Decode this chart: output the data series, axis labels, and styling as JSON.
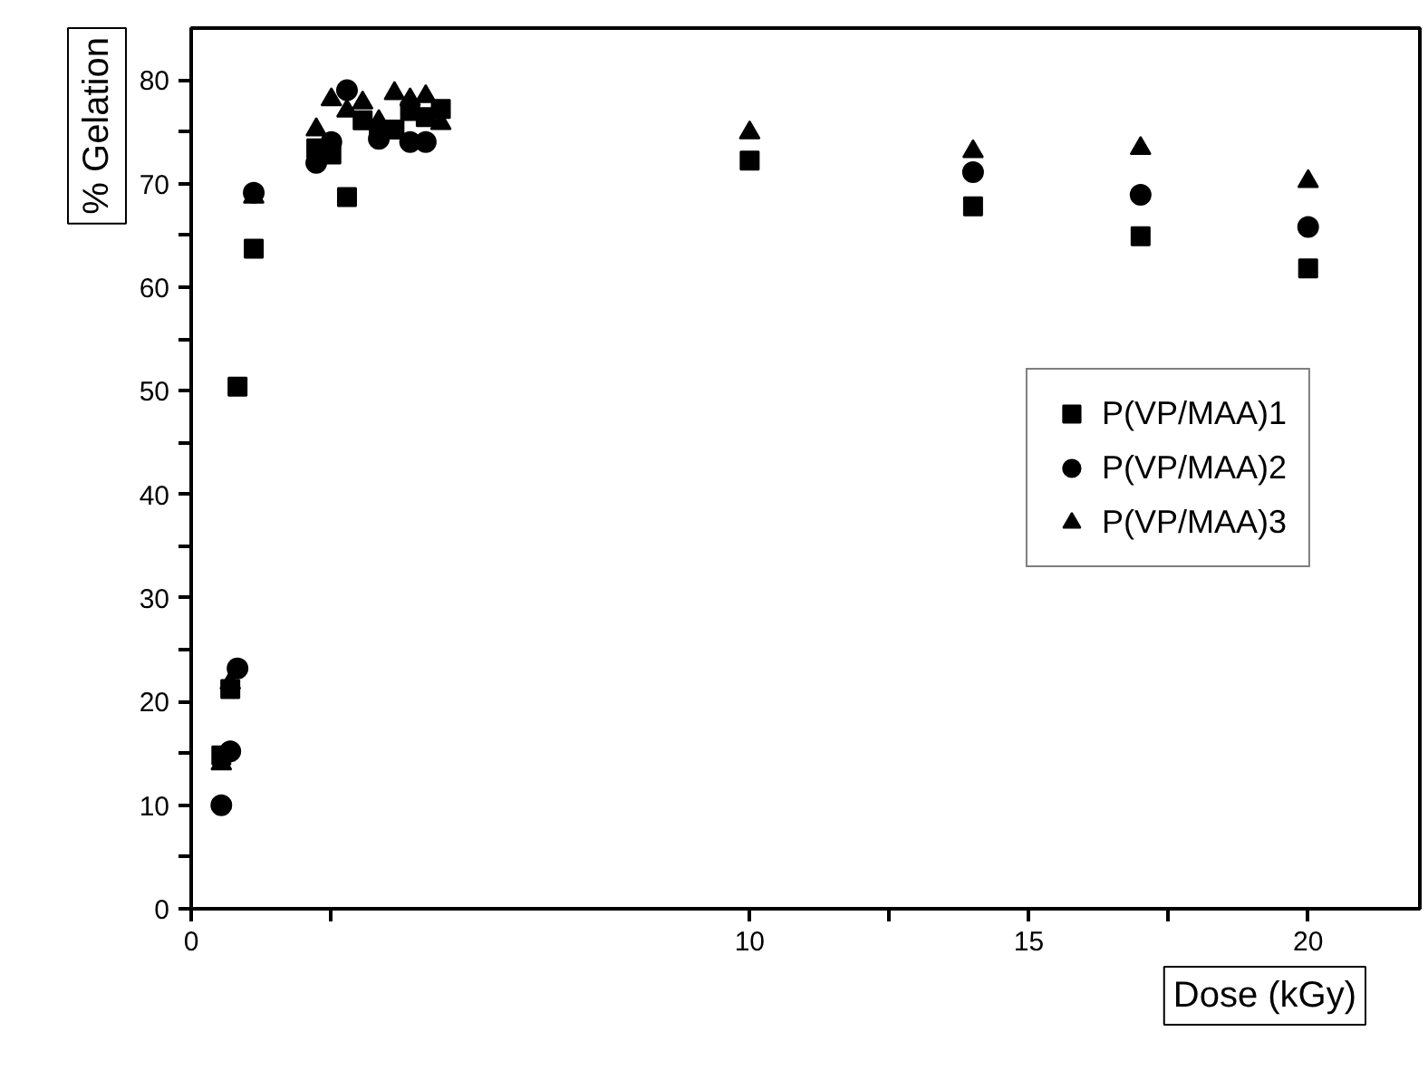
{
  "chart_data": {
    "type": "scatter",
    "xlabel": "Dose (kGy)",
    "ylabel": "% Gelation",
    "x": [
      0.54,
      0.7,
      0.83,
      1.12,
      2.24,
      2.51,
      2.79,
      3.07,
      3.36,
      3.64,
      3.92,
      4.2,
      4.47,
      10,
      14,
      17,
      20
    ],
    "series": [
      {
        "name": "P(VP/MAA)1",
        "color": "#000000",
        "marker": "square",
        "values": [
          14.8,
          21.2,
          50.4,
          63.7,
          73.4,
          72.8,
          68.7,
          76.1,
          75,
          75.2,
          77,
          76.4,
          77.2,
          72.2,
          67.8,
          64.9,
          61.8
        ]
      },
      {
        "name": "P(VP/MAA)2",
        "color": "#000000",
        "marker": "circle",
        "values": [
          10,
          15.2,
          23.2,
          69.1,
          72,
          74,
          79,
          null,
          74.3,
          null,
          74,
          74,
          null,
          null,
          71.1,
          68.9,
          65.8
        ]
      },
      {
        "name": "P(VP/MAA)3",
        "color": "#000000",
        "marker": "triangle",
        "values": [
          14,
          21.8,
          null,
          68.7,
          75.2,
          78.1,
          77,
          77.8,
          76,
          78.7,
          78.1,
          78.4,
          75.8,
          74.9,
          73.1,
          73.4,
          70.2
        ]
      }
    ],
    "xlim": [
      0,
      22
    ],
    "xticks": [
      0,
      {
        "value": 2.5,
        "label": null
      },
      10,
      {
        "value": 12.5,
        "label": null
      },
      15,
      {
        "value": 17.5,
        "label": null
      },
      20
    ],
    "ylim": [
      0,
      85
    ],
    "yticks": [
      0,
      {
        "value": 5,
        "label": null
      },
      10,
      {
        "value": 15,
        "label": null
      },
      20,
      {
        "value": 25,
        "label": null
      },
      30,
      {
        "value": 35,
        "label": null
      },
      40,
      {
        "value": 45,
        "label": null
      },
      50,
      {
        "value": 55,
        "label": null
      },
      60,
      {
        "value": 65,
        "label": null
      },
      70,
      {
        "value": 75,
        "label": null
      },
      80
    ],
    "grid": false,
    "legend": "right"
  }
}
